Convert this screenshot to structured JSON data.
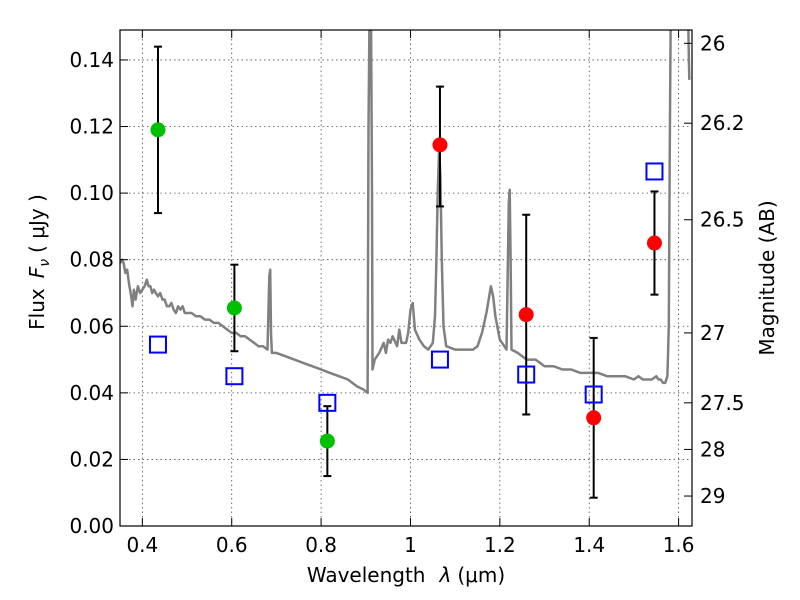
{
  "chart_data": {
    "type": "scatter",
    "title": "",
    "xlabel_prefix": "Wavelength",
    "xlabel_symbol": "λ",
    "xlabel_unit": "(μm)",
    "ylabel_prefix": "Flux",
    "ylabel_symbol": "F",
    "ylabel_subscript": "ν",
    "ylabel_unit": "( μJy )",
    "y2label": "Magnitude (AB)",
    "xlim": [
      0.35,
      1.63
    ],
    "ylim": [
      0.0,
      0.149
    ],
    "grid": true,
    "x_ticks": [
      0.4,
      0.6,
      0.8,
      1.0,
      1.2,
      1.4,
      1.6
    ],
    "x_tick_labels": [
      "0.4",
      "0.6",
      "0.8",
      "1",
      "1.2",
      "1.4",
      "1.6"
    ],
    "y_ticks": [
      0.0,
      0.02,
      0.04,
      0.06,
      0.08,
      0.1,
      0.12,
      0.14
    ],
    "y_tick_labels": [
      "0.00",
      "0.02",
      "0.04",
      "0.06",
      "0.08",
      "0.10",
      "0.12",
      "0.14"
    ],
    "y2_ticks": [
      {
        "label": "26",
        "flux": 0.145
      },
      {
        "label": "26.2",
        "flux": 0.121
      },
      {
        "label": "26.5",
        "flux": 0.092
      },
      {
        "label": "27",
        "flux": 0.058
      },
      {
        "label": "27.5",
        "flux": 0.037
      },
      {
        "label": "28",
        "flux": 0.023
      },
      {
        "label": "29",
        "flux": 0.009
      }
    ],
    "series": [
      {
        "name": "observed-green",
        "color": "#00c000",
        "marker": "circle",
        "points": [
          {
            "x": 0.435,
            "y": 0.119,
            "ylo": 0.094,
            "yhi": 0.144
          },
          {
            "x": 0.606,
            "y": 0.0655,
            "ylo": 0.0525,
            "yhi": 0.0785
          },
          {
            "x": 0.814,
            "y": 0.0255,
            "ylo": 0.015,
            "yhi": 0.036
          }
        ]
      },
      {
        "name": "observed-red",
        "color": "#ff0000",
        "marker": "circle",
        "points": [
          {
            "x": 1.066,
            "y": 0.1145,
            "ylo": 0.096,
            "yhi": 0.132
          },
          {
            "x": 1.259,
            "y": 0.0635,
            "ylo": 0.0335,
            "yhi": 0.0935
          },
          {
            "x": 1.41,
            "y": 0.0325,
            "ylo": 0.0085,
            "yhi": 0.0565
          },
          {
            "x": 1.546,
            "y": 0.085,
            "ylo": 0.0695,
            "yhi": 0.1005
          }
        ]
      },
      {
        "name": "model-photometry",
        "color": "#0000ff",
        "marker": "open-square",
        "points": [
          {
            "x": 0.435,
            "y": 0.0545
          },
          {
            "x": 0.606,
            "y": 0.045
          },
          {
            "x": 0.814,
            "y": 0.037
          },
          {
            "x": 1.066,
            "y": 0.05
          },
          {
            "x": 1.259,
            "y": 0.0455
          },
          {
            "x": 1.41,
            "y": 0.0395
          },
          {
            "x": 1.546,
            "y": 0.1065
          }
        ]
      },
      {
        "name": "model-spectrum",
        "color": "#808080",
        "type": "line",
        "points": [
          [
            0.35,
            0.079
          ],
          [
            0.355,
            0.08
          ],
          [
            0.358,
            0.079
          ],
          [
            0.362,
            0.076
          ],
          [
            0.366,
            0.077
          ],
          [
            0.37,
            0.073
          ],
          [
            0.375,
            0.069
          ],
          [
            0.378,
            0.066
          ],
          [
            0.381,
            0.071
          ],
          [
            0.385,
            0.068
          ],
          [
            0.39,
            0.072
          ],
          [
            0.395,
            0.07
          ],
          [
            0.4,
            0.071
          ],
          [
            0.405,
            0.072
          ],
          [
            0.41,
            0.074
          ],
          [
            0.414,
            0.072
          ],
          [
            0.418,
            0.072
          ],
          [
            0.422,
            0.07
          ],
          [
            0.426,
            0.071
          ],
          [
            0.43,
            0.07
          ],
          [
            0.435,
            0.069
          ],
          [
            0.44,
            0.07
          ],
          [
            0.445,
            0.068
          ],
          [
            0.45,
            0.068
          ],
          [
            0.455,
            0.066
          ],
          [
            0.46,
            0.066
          ],
          [
            0.465,
            0.067
          ],
          [
            0.47,
            0.065
          ],
          [
            0.475,
            0.064
          ],
          [
            0.48,
            0.066
          ],
          [
            0.485,
            0.065
          ],
          [
            0.49,
            0.066
          ],
          [
            0.495,
            0.064
          ],
          [
            0.5,
            0.064
          ],
          [
            0.51,
            0.064
          ],
          [
            0.52,
            0.063
          ],
          [
            0.53,
            0.063
          ],
          [
            0.54,
            0.062
          ],
          [
            0.55,
            0.062
          ],
          [
            0.56,
            0.061
          ],
          [
            0.57,
            0.061
          ],
          [
            0.58,
            0.06
          ],
          [
            0.59,
            0.059
          ],
          [
            0.6,
            0.058
          ],
          [
            0.61,
            0.058
          ],
          [
            0.62,
            0.057
          ],
          [
            0.63,
            0.057
          ],
          [
            0.64,
            0.056
          ],
          [
            0.65,
            0.055
          ],
          [
            0.66,
            0.054
          ],
          [
            0.67,
            0.054
          ],
          [
            0.68,
            0.053
          ],
          [
            0.684,
            0.075
          ],
          [
            0.686,
            0.077
          ],
          [
            0.688,
            0.058
          ],
          [
            0.69,
            0.052
          ],
          [
            0.7,
            0.052
          ],
          [
            0.72,
            0.051
          ],
          [
            0.74,
            0.05
          ],
          [
            0.76,
            0.049
          ],
          [
            0.78,
            0.048
          ],
          [
            0.8,
            0.047
          ],
          [
            0.82,
            0.046
          ],
          [
            0.84,
            0.045
          ],
          [
            0.86,
            0.044
          ],
          [
            0.88,
            0.042
          ],
          [
            0.895,
            0.041
          ],
          [
            0.904,
            0.04
          ],
          [
            0.906,
            0.12
          ],
          [
            0.908,
            0.149
          ],
          [
            0.912,
            0.149
          ],
          [
            0.914,
            0.1
          ],
          [
            0.915,
            0.047
          ],
          [
            0.92,
            0.05
          ],
          [
            0.93,
            0.052
          ],
          [
            0.94,
            0.055
          ],
          [
            0.945,
            0.052
          ],
          [
            0.95,
            0.056
          ],
          [
            0.955,
            0.055
          ],
          [
            0.96,
            0.057
          ],
          [
            0.97,
            0.054
          ],
          [
            0.975,
            0.059
          ],
          [
            0.98,
            0.055
          ],
          [
            0.99,
            0.055
          ],
          [
            0.995,
            0.058
          ],
          [
            1.0,
            0.065
          ],
          [
            1.005,
            0.067
          ],
          [
            1.01,
            0.059
          ],
          [
            1.02,
            0.056
          ],
          [
            1.03,
            0.054
          ],
          [
            1.04,
            0.053
          ],
          [
            1.05,
            0.055
          ],
          [
            1.055,
            0.063
          ],
          [
            1.058,
            0.08
          ],
          [
            1.061,
            0.1
          ],
          [
            1.064,
            0.113
          ],
          [
            1.067,
            0.105
          ],
          [
            1.07,
            0.08
          ],
          [
            1.074,
            0.06
          ],
          [
            1.08,
            0.054
          ],
          [
            1.1,
            0.053
          ],
          [
            1.12,
            0.053
          ],
          [
            1.14,
            0.053
          ],
          [
            1.15,
            0.054
          ],
          [
            1.16,
            0.058
          ],
          [
            1.17,
            0.064
          ],
          [
            1.18,
            0.072
          ],
          [
            1.185,
            0.069
          ],
          [
            1.19,
            0.063
          ],
          [
            1.2,
            0.056
          ],
          [
            1.21,
            0.054
          ],
          [
            1.215,
            0.053
          ],
          [
            1.22,
            0.097
          ],
          [
            1.222,
            0.101
          ],
          [
            1.224,
            0.08
          ],
          [
            1.226,
            0.053
          ],
          [
            1.24,
            0.052
          ],
          [
            1.26,
            0.05
          ],
          [
            1.28,
            0.05
          ],
          [
            1.3,
            0.048
          ],
          [
            1.32,
            0.048
          ],
          [
            1.34,
            0.047
          ],
          [
            1.36,
            0.047
          ],
          [
            1.38,
            0.046
          ],
          [
            1.4,
            0.046
          ],
          [
            1.42,
            0.046
          ],
          [
            1.44,
            0.045
          ],
          [
            1.46,
            0.045
          ],
          [
            1.48,
            0.045
          ],
          [
            1.5,
            0.044
          ],
          [
            1.51,
            0.045
          ],
          [
            1.52,
            0.044
          ],
          [
            1.53,
            0.044
          ],
          [
            1.54,
            0.044
          ],
          [
            1.55,
            0.045
          ],
          [
            1.555,
            0.044
          ],
          [
            1.56,
            0.044
          ],
          [
            1.565,
            0.043
          ],
          [
            1.57,
            0.043
          ],
          [
            1.575,
            0.045
          ],
          [
            1.578,
            0.06
          ],
          [
            1.58,
            0.11
          ],
          [
            1.582,
            0.149
          ],
          [
            1.585,
            0.149
          ]
        ]
      },
      {
        "name": "model-spectrum-edge",
        "color": "#808080",
        "type": "line",
        "points": [
          [
            1.622,
            0.149
          ],
          [
            1.623,
            0.14
          ],
          [
            1.624,
            0.134
          ]
        ]
      }
    ]
  }
}
